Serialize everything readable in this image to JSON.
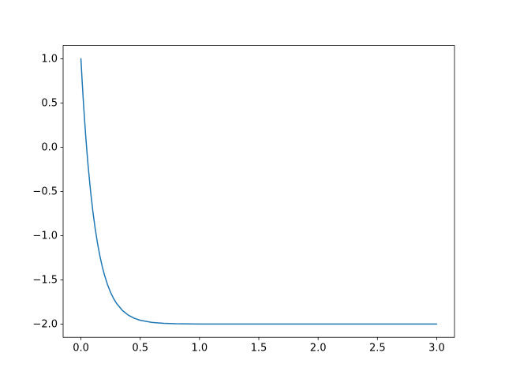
{
  "chart_data": {
    "type": "line",
    "title": "",
    "xlabel": "",
    "ylabel": "",
    "grid": false,
    "legend": null,
    "background_color": "#ffffff",
    "spine_color": "#000000",
    "tick_label_color": "#000000",
    "line_color": "#1f77b4",
    "line_width": 1.5,
    "xlim": [
      -0.15,
      3.15
    ],
    "ylim": [
      -2.15,
      1.15
    ],
    "xticks": [
      0.0,
      0.5,
      1.0,
      1.5,
      2.0,
      2.5,
      3.0
    ],
    "xtick_labels": [
      "0.0",
      "0.5",
      "1.0",
      "1.5",
      "2.0",
      "2.5",
      "3.0"
    ],
    "yticks": [
      1.0,
      0.5,
      0.0,
      -0.5,
      -1.0,
      -1.5,
      -2.0
    ],
    "ytick_labels": [
      "1.0",
      "0.5",
      "0.0",
      "−0.5",
      "−1.0",
      "−1.5",
      "−2.0"
    ],
    "series": [
      {
        "x": [
          0.0,
          0.01,
          0.02,
          0.03,
          0.04,
          0.05,
          0.06,
          0.08,
          0.1,
          0.12,
          0.14,
          0.16,
          0.18,
          0.2,
          0.225,
          0.25,
          0.275,
          0.3,
          0.35,
          0.4,
          0.45,
          0.5,
          0.6,
          0.7,
          0.8,
          1.0,
          1.25,
          1.5,
          2.0,
          2.5,
          3.0
        ],
        "y": [
          1.0,
          0.7555,
          0.531,
          0.3248,
          0.1353,
          -0.0387,
          -0.1985,
          -0.4802,
          -0.7178,
          -0.9183,
          -1.0874,
          -1.23,
          -1.3504,
          -1.4519,
          -1.5568,
          -1.6417,
          -1.7103,
          -1.7657,
          -1.847,
          -1.8999,
          -1.9345,
          -1.9572,
          -1.9817,
          -1.9922,
          -1.9967,
          -1.9994,
          -1.9999,
          -2.0,
          -2.0,
          -2.0,
          -2.0
        ]
      }
    ]
  }
}
